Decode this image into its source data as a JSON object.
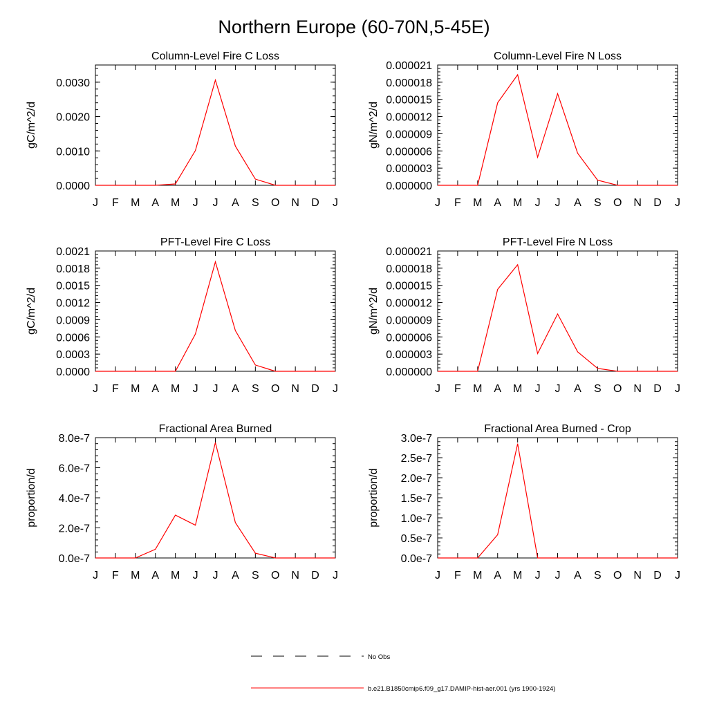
{
  "figure": {
    "title": "Northern Europe (60-70N,5-45E)"
  },
  "legend": {
    "items": [
      {
        "label": "No Obs",
        "color": "#000000",
        "style": "dashed"
      },
      {
        "label": "b.e21.B1850cmip6.f09_g17.DAMIP-hist-aer.001 (yrs 1900-1924)",
        "color": "#ff0000",
        "style": "solid"
      }
    ]
  },
  "chart_data": [
    {
      "type": "line",
      "title": "Column-Level Fire C Loss",
      "ylabel": "gC/m^2/d",
      "xlabel": "",
      "categories": [
        "J",
        "F",
        "M",
        "A",
        "M",
        "J",
        "J",
        "A",
        "S",
        "O",
        "N",
        "D",
        "J"
      ],
      "ylim": [
        0,
        0.0035
      ],
      "yticks": [
        0,
        0.001,
        0.002,
        0.003
      ],
      "ytick_labels": [
        "0.0000",
        "0.0010",
        "0.0020",
        "0.0030"
      ],
      "series": [
        {
          "color": "#ff0000",
          "values": [
            0,
            0,
            0,
            0,
            4e-05,
            0.00101,
            0.00306,
            0.00114,
            0.00018,
            0,
            0,
            0,
            0
          ]
        }
      ]
    },
    {
      "type": "line",
      "title": "Column-Level Fire N Loss",
      "ylabel": "gN/m^2/d",
      "xlabel": "",
      "categories": [
        "J",
        "F",
        "M",
        "A",
        "M",
        "J",
        "J",
        "A",
        "S",
        "O",
        "N",
        "D",
        "J"
      ],
      "ylim": [
        0,
        2.1e-05
      ],
      "yticks": [
        0,
        3e-06,
        6e-06,
        9e-06,
        1.2e-05,
        1.5e-05,
        1.8e-05,
        2.1e-05
      ],
      "ytick_labels": [
        "0.000000",
        "0.000003",
        "0.000006",
        "0.000009",
        "0.000012",
        "0.000015",
        "0.000018",
        "0.000021"
      ],
      "series": [
        {
          "color": "#ff0000",
          "values": [
            0,
            0,
            0,
            1.44e-05,
            1.93e-05,
            4.9e-06,
            1.6e-05,
            5.6e-06,
            9e-07,
            0,
            0,
            0,
            0
          ]
        }
      ]
    },
    {
      "type": "line",
      "title": "PFT-Level Fire C Loss",
      "ylabel": "gC/m^2/d",
      "xlabel": "",
      "categories": [
        "J",
        "F",
        "M",
        "A",
        "M",
        "J",
        "J",
        "A",
        "S",
        "O",
        "N",
        "D",
        "J"
      ],
      "ylim": [
        0,
        0.0021
      ],
      "yticks": [
        0,
        0.0003,
        0.0006,
        0.0009,
        0.0012,
        0.0015,
        0.0018,
        0.0021
      ],
      "ytick_labels": [
        "0.0000",
        "0.0003",
        "0.0006",
        "0.0009",
        "0.0012",
        "0.0015",
        "0.0018",
        "0.0021"
      ],
      "series": [
        {
          "color": "#ff0000",
          "values": [
            0,
            0,
            0,
            0,
            0,
            0.00065,
            0.00191,
            0.00071,
            0.00011,
            0,
            0,
            0,
            0
          ]
        }
      ]
    },
    {
      "type": "line",
      "title": "PFT-Level Fire N Loss",
      "ylabel": "gN/m^2/d",
      "xlabel": "",
      "categories": [
        "J",
        "F",
        "M",
        "A",
        "M",
        "J",
        "J",
        "A",
        "S",
        "O",
        "N",
        "D",
        "J"
      ],
      "ylim": [
        0,
        2.1e-05
      ],
      "yticks": [
        0,
        3e-06,
        6e-06,
        9e-06,
        1.2e-05,
        1.5e-05,
        1.8e-05,
        2.1e-05
      ],
      "ytick_labels": [
        "0.000000",
        "0.000003",
        "0.000006",
        "0.000009",
        "0.000012",
        "0.000015",
        "0.000018",
        "0.000021"
      ],
      "series": [
        {
          "color": "#ff0000",
          "values": [
            0,
            0,
            0,
            1.43e-05,
            1.86e-05,
            3.1e-06,
            1e-05,
            3.4e-06,
            5e-07,
            0,
            0,
            0,
            0
          ]
        }
      ]
    },
    {
      "type": "line",
      "title": "Fractional Area Burned",
      "ylabel": "proportion/d",
      "xlabel": "",
      "categories": [
        "J",
        "F",
        "M",
        "A",
        "M",
        "J",
        "J",
        "A",
        "S",
        "O",
        "N",
        "D",
        "J"
      ],
      "ylim": [
        0,
        8e-07
      ],
      "yticks": [
        0,
        2e-07,
        4e-07,
        6e-07,
        8e-07
      ],
      "ytick_labels": [
        "0.0e-7",
        "2.0e-7",
        "4.0e-7",
        "6.0e-7",
        "8.0e-7"
      ],
      "series": [
        {
          "color": "#ff0000",
          "values": [
            0,
            0,
            0,
            5.8e-08,
            2.85e-07,
            2.18e-07,
            7.68e-07,
            2.35e-07,
            3.2e-08,
            0,
            0,
            0,
            0
          ]
        }
      ]
    },
    {
      "type": "line",
      "title": "Fractional Area Burned - Crop",
      "ylabel": "proportion/d",
      "xlabel": "",
      "categories": [
        "J",
        "F",
        "M",
        "A",
        "M",
        "J",
        "J",
        "A",
        "S",
        "O",
        "N",
        "D",
        "J"
      ],
      "ylim": [
        0,
        3e-07
      ],
      "yticks": [
        0,
        5e-08,
        1e-07,
        1.5e-07,
        2e-07,
        2.5e-07,
        3e-07
      ],
      "ytick_labels": [
        "0.0e-7",
        "0.5e-7",
        "1.0e-7",
        "1.5e-7",
        "2.0e-7",
        "2.5e-7",
        "3.0e-7"
      ],
      "series": [
        {
          "color": "#ff0000",
          "values": [
            0,
            0,
            0,
            5.8e-08,
            2.85e-07,
            0,
            0,
            0,
            0,
            0,
            0,
            0,
            0
          ]
        }
      ]
    }
  ]
}
